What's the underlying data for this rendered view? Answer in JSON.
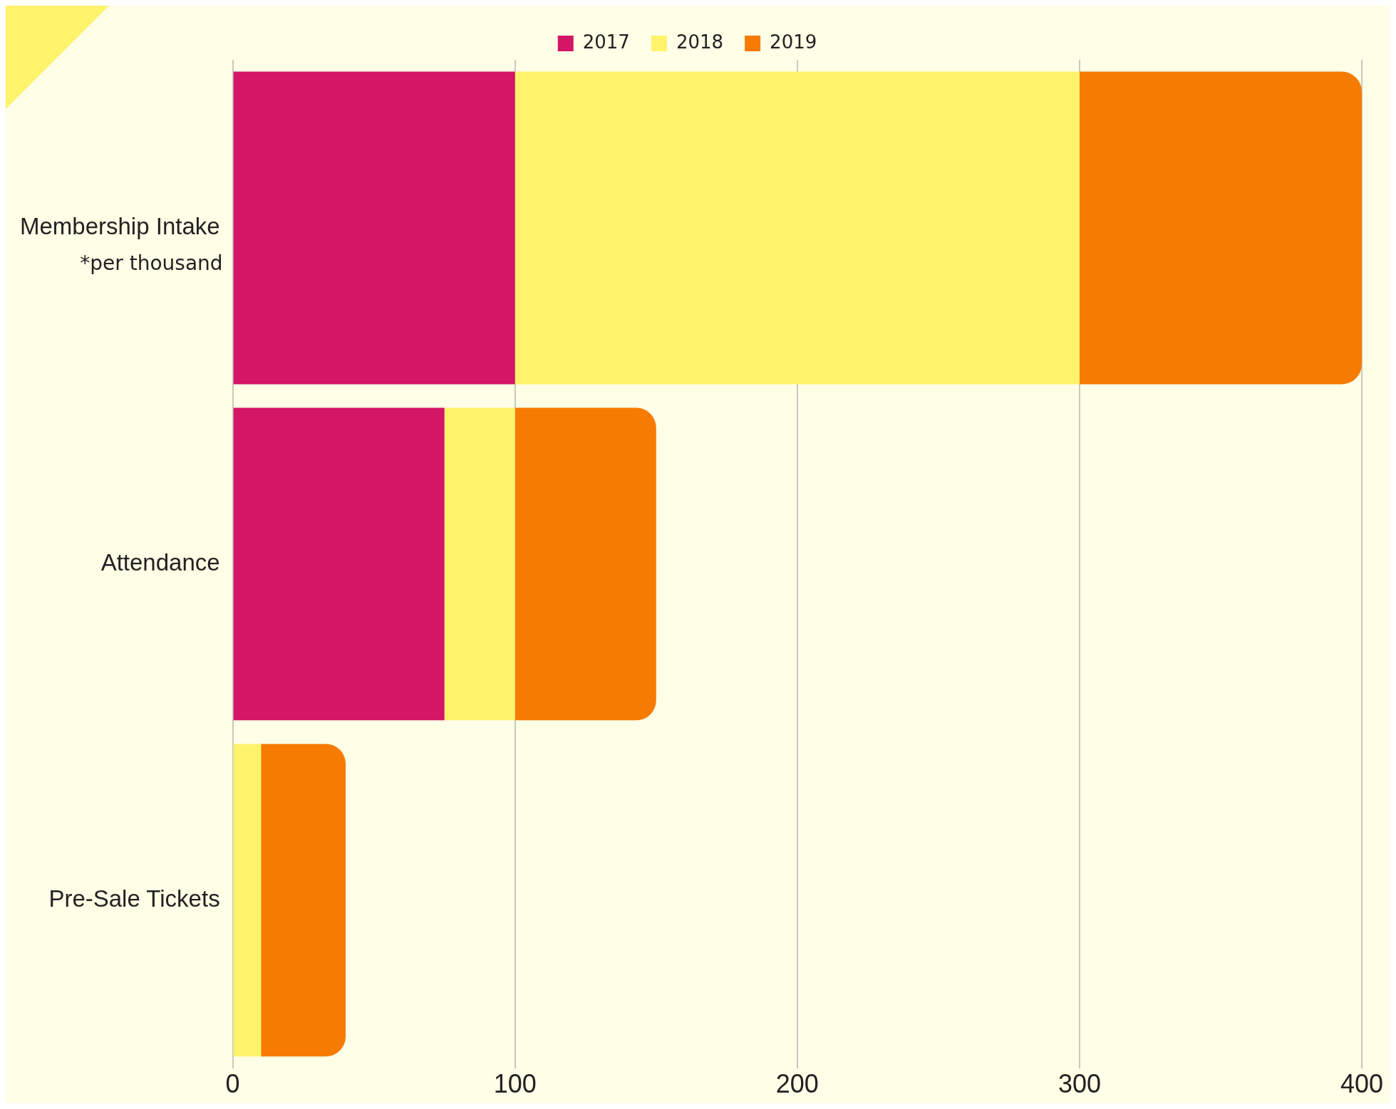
{
  "chart_data": {
    "type": "bar",
    "orientation": "horizontal",
    "stacked": true,
    "categories": [
      "Membership Intake",
      "Attendance",
      "Pre-Sale Tickets"
    ],
    "series": [
      {
        "name": "2017",
        "color": "#d31665",
        "values": [
          100,
          75,
          0
        ]
      },
      {
        "name": "2018",
        "color": "#fff36b",
        "values": [
          200,
          25,
          10
        ]
      },
      {
        "name": "2019",
        "color": "#f67b02",
        "values": [
          100,
          50,
          30
        ]
      }
    ],
    "xlim": [
      0,
      400
    ],
    "xticks": [
      0,
      100,
      200,
      300,
      400
    ],
    "grid": "x",
    "legend": "top",
    "annotations": [
      "*per thousand"
    ]
  }
}
